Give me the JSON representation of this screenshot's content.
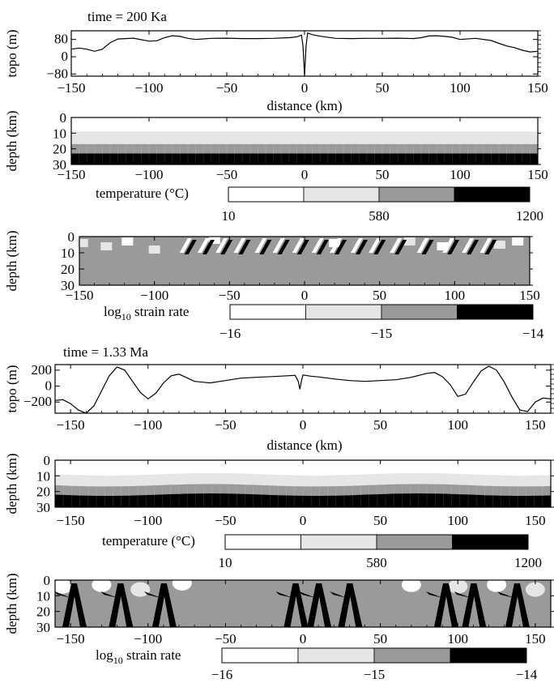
{
  "figure": {
    "time_labels": [
      "time = 200 Ka",
      "time = 1.33 Ma"
    ],
    "palette": [
      "#ffffff",
      "#e6e6e6",
      "#9a9a9a",
      "#000000"
    ]
  },
  "chart_data": [
    {
      "type": "line",
      "id": "topo_200ka",
      "title": "time = 200 Ka",
      "xlabel": "distance (km)",
      "ylabel": "topo (m)",
      "xlim": [
        -150,
        150
      ],
      "ylim": [
        -90,
        120
      ],
      "xticks": [
        -150,
        -100,
        -50,
        0,
        50,
        100,
        150
      ],
      "yticks": [
        80,
        0,
        -80
      ],
      "series": [
        {
          "x": [
            -150,
            -145,
            -140,
            -135,
            -130,
            -125,
            -120,
            -110,
            -100,
            -95,
            -90,
            -85,
            -80,
            -75,
            -70,
            -60,
            -50,
            -40,
            -30,
            -20,
            -10,
            -5,
            -2,
            -1,
            0,
            1,
            2,
            5,
            10,
            20,
            30,
            40,
            50,
            60,
            70,
            75,
            80,
            85,
            90,
            95,
            100,
            110,
            120,
            125,
            130,
            135,
            140,
            145,
            150
          ],
          "y": [
            35,
            40,
            35,
            25,
            35,
            65,
            82,
            86,
            72,
            74,
            88,
            97,
            94,
            85,
            80,
            85,
            86,
            84,
            84,
            85,
            88,
            92,
            100,
            50,
            -90,
            50,
            110,
            102,
            95,
            85,
            84,
            85,
            85,
            86,
            84,
            88,
            96,
            97,
            94,
            90,
            80,
            85,
            75,
            62,
            50,
            42,
            30,
            22,
            25
          ]
        }
      ]
    },
    {
      "type": "heatmap",
      "id": "temp_200ka",
      "ylabel": "depth (km)",
      "colorbar_label": "temperature (°C)",
      "colorbar_ticks": [
        "10",
        "580",
        "1200"
      ],
      "xlim": [
        -150,
        150
      ],
      "ylim": [
        0,
        30
      ],
      "xticks": [
        -150,
        -100,
        -50,
        0,
        50,
        100,
        150
      ],
      "yticks": [
        0,
        10,
        20,
        30
      ],
      "layers": [
        {
          "top": 0,
          "bottom": 9,
          "level": 0
        },
        {
          "top": 9,
          "bottom": 17,
          "level": 1
        },
        {
          "top": 17,
          "bottom": 23,
          "level": 2
        },
        {
          "top": 23,
          "bottom": 30,
          "level": 3
        }
      ]
    },
    {
      "type": "heatmap",
      "id": "strain_200ka",
      "ylabel": "depth (km)",
      "colorbar_label_base": "log",
      "colorbar_label_sub": "10",
      "colorbar_label_rest": " strain rate",
      "colorbar_ticks": [
        "−16",
        "−15",
        "−14"
      ],
      "xlim": [
        -150,
        150
      ],
      "ylim": [
        0,
        30
      ],
      "xticks": [
        -150,
        -100,
        -50,
        0,
        50,
        100,
        150
      ],
      "yticks": [
        0,
        10,
        20,
        30
      ],
      "background_level": 2,
      "shear_bands_x": [
        -80,
        -68,
        -56,
        -44,
        -30,
        -18,
        -5,
        8,
        20,
        34,
        46,
        60,
        78,
        95,
        108,
        120
      ],
      "light_patches": [
        {
          "x": -148,
          "z": 4,
          "level": 1
        },
        {
          "x": -132,
          "z": 6,
          "level": 1
        },
        {
          "x": -118,
          "z": 3,
          "level": 0
        },
        {
          "x": -100,
          "z": 8,
          "level": 1
        },
        {
          "x": -60,
          "z": 2,
          "level": 0
        },
        {
          "x": 20,
          "z": 4,
          "level": 0
        },
        {
          "x": 70,
          "z": 3,
          "level": 1
        },
        {
          "x": 92,
          "z": 6,
          "level": 0
        },
        {
          "x": 130,
          "z": 5,
          "level": 1
        },
        {
          "x": 142,
          "z": 3,
          "level": 0
        }
      ]
    },
    {
      "type": "line",
      "id": "topo_1.33ma",
      "title": "time = 1.33 Ma",
      "xlabel": "distance (km)",
      "ylabel": "topo (m)",
      "xlim": [
        -160,
        160
      ],
      "ylim": [
        -340,
        270
      ],
      "xticks": [
        -150,
        -100,
        -50,
        0,
        50,
        100,
        150
      ],
      "yticks": [
        200,
        0,
        -200
      ],
      "series": [
        {
          "x": [
            -160,
            -155,
            -150,
            -145,
            -140,
            -135,
            -130,
            -125,
            -120,
            -115,
            -110,
            -105,
            -100,
            -95,
            -90,
            -85,
            -80,
            -70,
            -60,
            -50,
            -40,
            -30,
            -20,
            -10,
            -5,
            -3,
            -2,
            -1,
            0,
            5,
            10,
            20,
            30,
            40,
            50,
            60,
            70,
            80,
            85,
            90,
            95,
            100,
            105,
            110,
            115,
            120,
            125,
            130,
            135,
            140,
            145,
            150,
            155,
            160
          ],
          "y": [
            -180,
            -170,
            -220,
            -300,
            -340,
            -250,
            -60,
            130,
            240,
            200,
            60,
            -80,
            -160,
            -90,
            40,
            130,
            150,
            60,
            40,
            70,
            100,
            110,
            120,
            130,
            135,
            60,
            -40,
            60,
            140,
            125,
            115,
            90,
            70,
            60,
            70,
            80,
            110,
            160,
            170,
            120,
            20,
            -130,
            -100,
            50,
            190,
            250,
            200,
            50,
            -140,
            -300,
            -320,
            -200,
            -150,
            -160
          ]
        }
      ]
    },
    {
      "type": "heatmap",
      "id": "temp_1.33ma",
      "ylabel": "depth (km)",
      "colorbar_label": "temperature (°C)",
      "colorbar_ticks": [
        "10",
        "580",
        "1200"
      ],
      "xlim": [
        -160,
        160
      ],
      "ylim": [
        0,
        30
      ],
      "xticks": [
        -150,
        -100,
        -50,
        0,
        50,
        100,
        150
      ],
      "yticks": [
        0,
        10,
        20,
        30
      ],
      "layers": [
        {
          "top": 0,
          "bottom": 9,
          "level": 0
        },
        {
          "top": 9,
          "bottom": 16,
          "level": 1
        },
        {
          "top": 16,
          "bottom": 22,
          "level": 2
        },
        {
          "top": 22,
          "bottom": 30,
          "level": 3
        }
      ]
    },
    {
      "type": "heatmap",
      "id": "strain_1.33ma",
      "ylabel": "depth (km)",
      "colorbar_label_base": "log",
      "colorbar_label_sub": "10",
      "colorbar_label_rest": " strain rate",
      "colorbar_ticks": [
        "−16",
        "−15",
        "−14"
      ],
      "xlim": [
        -160,
        160
      ],
      "ylim": [
        0,
        30
      ],
      "xticks": [
        -150,
        -100,
        -50,
        0,
        50,
        100,
        150
      ],
      "yticks": [
        0,
        10,
        20,
        30
      ],
      "background_level": 2,
      "fault_centers": [
        -148,
        -118,
        -90,
        -5,
        10,
        30,
        92,
        110,
        138
      ],
      "light_patches": [
        {
          "x": -155,
          "z": 4,
          "level": 0
        },
        {
          "x": -130,
          "z": 3,
          "level": 0
        },
        {
          "x": -105,
          "z": 6,
          "level": 1
        },
        {
          "x": -78,
          "z": 2,
          "level": 0
        },
        {
          "x": 70,
          "z": 3,
          "level": 0
        },
        {
          "x": 100,
          "z": 4,
          "level": 1
        },
        {
          "x": 125,
          "z": 3,
          "level": 0
        },
        {
          "x": 150,
          "z": 6,
          "level": 1
        }
      ]
    }
  ]
}
